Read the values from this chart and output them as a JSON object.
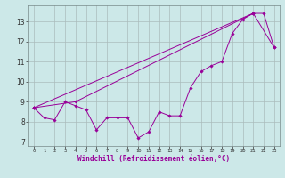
{
  "xlabel": "Windchill (Refroidissement éolien,°C)",
  "x_values": [
    0,
    1,
    2,
    3,
    4,
    5,
    6,
    7,
    8,
    9,
    10,
    11,
    12,
    13,
    14,
    15,
    16,
    17,
    18,
    19,
    20,
    21,
    22,
    23
  ],
  "line_zigzag": [
    8.7,
    8.2,
    8.1,
    9.0,
    8.8,
    8.6,
    7.6,
    8.2,
    8.2,
    8.2,
    7.2,
    7.5,
    8.5,
    8.3,
    8.3,
    9.7,
    10.5,
    10.8,
    11.0,
    12.4,
    13.1,
    13.4,
    13.4,
    11.7
  ],
  "line_upper": [
    [
      0,
      8.7
    ],
    [
      21,
      13.4
    ]
  ],
  "line_lower": [
    [
      0,
      8.7
    ],
    [
      4,
      9.0
    ],
    [
      21,
      13.4
    ],
    [
      23,
      11.7
    ]
  ],
  "line_color": "#990099",
  "bg_color": "#cce8e8",
  "grid_color": "#aabcbc",
  "ylim": [
    6.8,
    13.8
  ],
  "yticks": [
    7,
    8,
    9,
    10,
    11,
    12,
    13
  ],
  "xlim": [
    -0.5,
    23.5
  ]
}
